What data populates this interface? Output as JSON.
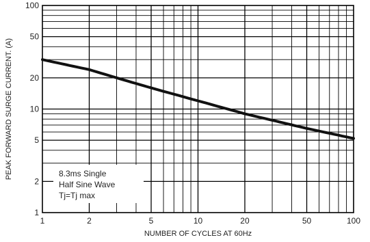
{
  "chart_data": {
    "type": "line",
    "xlabel": "NUMBER OF CYCLES AT 60Hz",
    "ylabel": "PEAK FORWARD SURGE CURRENT. (A)",
    "x_scale": "log",
    "y_scale": "log",
    "xlim": [
      1,
      100
    ],
    "ylim": [
      1,
      100
    ],
    "grid": true,
    "x_ticks": [
      1,
      2,
      5,
      10,
      20,
      50,
      100
    ],
    "x_tick_labels": [
      "1",
      "2",
      "5",
      "10",
      "20",
      "50",
      "100"
    ],
    "y_ticks": [
      1,
      2,
      5,
      10,
      20,
      50,
      100
    ],
    "y_tick_labels": [
      "1",
      "2",
      "5",
      "10",
      "20",
      "50",
      "100"
    ],
    "series": [
      {
        "x": [
          1,
          2,
          3,
          5,
          10,
          20,
          50,
          100
        ],
        "y": [
          30,
          24,
          20,
          16,
          12,
          9,
          6.5,
          5.2
        ]
      }
    ],
    "annotation_lines": [
      "8.3ms Single",
      "Half Sine Wave",
      "Tj=Tj max"
    ],
    "line_color": "#111111",
    "grid_color": "#000000"
  }
}
